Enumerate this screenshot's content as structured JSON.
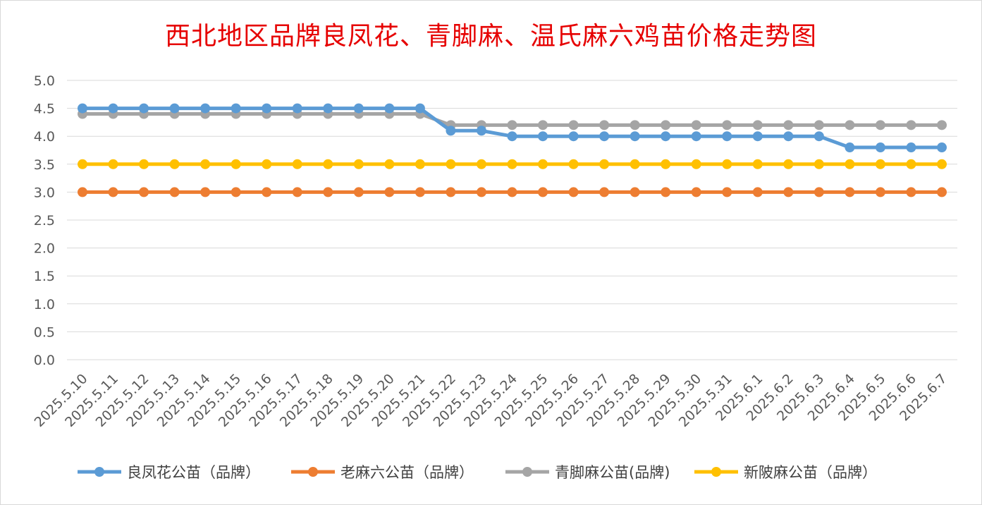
{
  "chart_data": {
    "type": "line",
    "title": "西北地区品牌良凤花、青脚麻、温氏麻六鸡苗价格走势图",
    "xlabel": "",
    "ylabel": "",
    "ylim": [
      0,
      5
    ],
    "yticks": [
      "0.0",
      "0.5",
      "1.0",
      "1.5",
      "2.0",
      "2.5",
      "3.0",
      "3.5",
      "4.0",
      "4.5",
      "5.0"
    ],
    "grid": true,
    "legend_position": "bottom",
    "x": [
      "2025.5.10",
      "2025.5.11",
      "2025.5.12",
      "2025.5.13",
      "2025.5.14",
      "2025.5.15",
      "2025.5.16",
      "2025.5.17",
      "2025.5.18",
      "2025.5.19",
      "2025.5.20",
      "2025.5.21",
      "2025.5.22",
      "2025.5.23",
      "2025.5.24",
      "2025.5.25",
      "2025.5.26",
      "2025.5.27",
      "2025.5.28",
      "2025.5.29",
      "2025.5.30",
      "2025.5.31",
      "2025.6.1",
      "2025.6.2",
      "2025.6.3",
      "2025.6.4",
      "2025.6.5",
      "2025.6.6",
      "2025.6.7"
    ],
    "series": [
      {
        "name": "良凤花公苗（品牌）",
        "color": "#5b9bd5",
        "values": [
          4.5,
          4.5,
          4.5,
          4.5,
          4.5,
          4.5,
          4.5,
          4.5,
          4.5,
          4.5,
          4.5,
          4.5,
          4.1,
          4.1,
          4.0,
          4.0,
          4.0,
          4.0,
          4.0,
          4.0,
          4.0,
          4.0,
          4.0,
          4.0,
          4.0,
          3.8,
          3.8,
          3.8,
          3.8
        ]
      },
      {
        "name": "老麻六公苗（品牌）",
        "color": "#ed7d31",
        "values": [
          3.0,
          3.0,
          3.0,
          3.0,
          3.0,
          3.0,
          3.0,
          3.0,
          3.0,
          3.0,
          3.0,
          3.0,
          3.0,
          3.0,
          3.0,
          3.0,
          3.0,
          3.0,
          3.0,
          3.0,
          3.0,
          3.0,
          3.0,
          3.0,
          3.0,
          3.0,
          3.0,
          3.0,
          3.0
        ]
      },
      {
        "name": "青脚麻公苗(品牌)",
        "color": "#a5a5a5",
        "values": [
          4.4,
          4.4,
          4.4,
          4.4,
          4.4,
          4.4,
          4.4,
          4.4,
          4.4,
          4.4,
          4.4,
          4.4,
          4.2,
          4.2,
          4.2,
          4.2,
          4.2,
          4.2,
          4.2,
          4.2,
          4.2,
          4.2,
          4.2,
          4.2,
          4.2,
          4.2,
          4.2,
          4.2,
          4.2
        ]
      },
      {
        "name": "新陂麻公苗（品牌）",
        "color": "#ffc000",
        "values": [
          3.5,
          3.5,
          3.5,
          3.5,
          3.5,
          3.5,
          3.5,
          3.5,
          3.5,
          3.5,
          3.5,
          3.5,
          3.5,
          3.5,
          3.5,
          3.5,
          3.5,
          3.5,
          3.5,
          3.5,
          3.5,
          3.5,
          3.5,
          3.5,
          3.5,
          3.5,
          3.5,
          3.5,
          3.5
        ]
      }
    ]
  }
}
